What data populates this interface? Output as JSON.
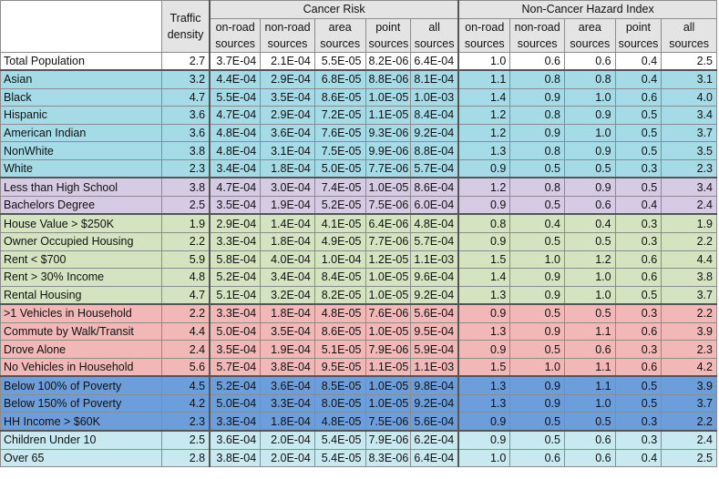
{
  "header": {
    "traffic_density": [
      "Traffic",
      "density"
    ],
    "group_cancer": "Cancer Risk",
    "group_noncancer": "Non-Cancer Hazard Index",
    "sub_cols": [
      [
        "on-road",
        "sources"
      ],
      [
        "non-road",
        "sources"
      ],
      [
        "area",
        "sources"
      ],
      [
        "point",
        "sources"
      ],
      [
        "all",
        "sources"
      ]
    ]
  },
  "rows": [
    {
      "label": "Total Population",
      "group": "total",
      "traffic": "2.7",
      "cancer": [
        "3.7E-04",
        "2.1E-04",
        "5.5E-05",
        "8.2E-06",
        "6.4E-04"
      ],
      "noncancer": [
        "1.0",
        "0.6",
        "0.6",
        "0.4",
        "2.5"
      ]
    },
    {
      "label": "Asian",
      "group": "race",
      "traffic": "3.2",
      "cancer": [
        "4.4E-04",
        "2.9E-04",
        "6.8E-05",
        "8.8E-06",
        "8.1E-04"
      ],
      "noncancer": [
        "1.1",
        "0.8",
        "0.8",
        "0.4",
        "3.1"
      ]
    },
    {
      "label": "Black",
      "group": "race",
      "traffic": "4.7",
      "cancer": [
        "5.5E-04",
        "3.5E-04",
        "8.6E-05",
        "1.0E-05",
        "1.0E-03"
      ],
      "noncancer": [
        "1.4",
        "0.9",
        "1.0",
        "0.6",
        "4.0"
      ]
    },
    {
      "label": "Hispanic",
      "group": "race",
      "traffic": "3.6",
      "cancer": [
        "4.7E-04",
        "2.9E-04",
        "7.2E-05",
        "1.1E-05",
        "8.4E-04"
      ],
      "noncancer": [
        "1.2",
        "0.8",
        "0.9",
        "0.5",
        "3.4"
      ]
    },
    {
      "label": "American Indian",
      "group": "race",
      "traffic": "3.6",
      "cancer": [
        "4.8E-04",
        "3.6E-04",
        "7.6E-05",
        "9.3E-06",
        "9.2E-04"
      ],
      "noncancer": [
        "1.2",
        "0.9",
        "1.0",
        "0.5",
        "3.7"
      ]
    },
    {
      "label": "NonWhite",
      "group": "race",
      "traffic": "3.8",
      "cancer": [
        "4.8E-04",
        "3.1E-04",
        "7.5E-05",
        "9.9E-06",
        "8.8E-04"
      ],
      "noncancer": [
        "1.3",
        "0.8",
        "0.9",
        "0.5",
        "3.5"
      ]
    },
    {
      "label": "White",
      "group": "race",
      "traffic": "2.3",
      "cancer": [
        "3.4E-04",
        "1.8E-04",
        "5.0E-05",
        "7.7E-06",
        "5.7E-04"
      ],
      "noncancer": [
        "0.9",
        "0.5",
        "0.5",
        "0.3",
        "2.3"
      ]
    },
    {
      "label": "Less than High School",
      "group": "edu",
      "traffic": "3.8",
      "cancer": [
        "4.7E-04",
        "3.0E-04",
        "7.4E-05",
        "1.0E-05",
        "8.6E-04"
      ],
      "noncancer": [
        "1.2",
        "0.8",
        "0.9",
        "0.5",
        "3.4"
      ]
    },
    {
      "label": "Bachelors Degree",
      "group": "edu",
      "traffic": "2.5",
      "cancer": [
        "3.5E-04",
        "1.9E-04",
        "5.2E-05",
        "7.5E-06",
        "6.0E-04"
      ],
      "noncancer": [
        "0.9",
        "0.5",
        "0.6",
        "0.4",
        "2.4"
      ]
    },
    {
      "label": "House Value > $250K",
      "group": "housing",
      "traffic": "1.9",
      "cancer": [
        "2.9E-04",
        "1.4E-04",
        "4.1E-05",
        "6.4E-06",
        "4.8E-04"
      ],
      "noncancer": [
        "0.8",
        "0.4",
        "0.4",
        "0.3",
        "1.9"
      ]
    },
    {
      "label": "Owner Occupied Housing",
      "group": "housing",
      "traffic": "2.2",
      "cancer": [
        "3.3E-04",
        "1.8E-04",
        "4.9E-05",
        "7.7E-06",
        "5.7E-04"
      ],
      "noncancer": [
        "0.9",
        "0.5",
        "0.5",
        "0.3",
        "2.2"
      ]
    },
    {
      "label": "Rent < $700",
      "group": "housing",
      "traffic": "5.9",
      "cancer": [
        "5.8E-04",
        "4.0E-04",
        "1.0E-04",
        "1.2E-05",
        "1.1E-03"
      ],
      "noncancer": [
        "1.5",
        "1.0",
        "1.2",
        "0.6",
        "4.4"
      ]
    },
    {
      "label": "Rent > 30% Income",
      "group": "housing",
      "traffic": "4.8",
      "cancer": [
        "5.2E-04",
        "3.4E-04",
        "8.4E-05",
        "1.0E-05",
        "9.6E-04"
      ],
      "noncancer": [
        "1.4",
        "0.9",
        "1.0",
        "0.6",
        "3.8"
      ]
    },
    {
      "label": "Rental Housing",
      "group": "housing",
      "traffic": "4.7",
      "cancer": [
        "5.1E-04",
        "3.2E-04",
        "8.2E-05",
        "1.0E-05",
        "9.2E-04"
      ],
      "noncancer": [
        "1.3",
        "0.9",
        "1.0",
        "0.5",
        "3.7"
      ]
    },
    {
      "label": ">1 Vehicles in Household",
      "group": "vehicle",
      "traffic": "2.2",
      "cancer": [
        "3.3E-04",
        "1.8E-04",
        "4.8E-05",
        "7.6E-06",
        "5.6E-04"
      ],
      "noncancer": [
        "0.9",
        "0.5",
        "0.5",
        "0.3",
        "2.2"
      ]
    },
    {
      "label": "Commute by Walk/Transit",
      "group": "vehicle",
      "traffic": "4.4",
      "cancer": [
        "5.0E-04",
        "3.5E-04",
        "8.6E-05",
        "1.0E-05",
        "9.5E-04"
      ],
      "noncancer": [
        "1.3",
        "0.9",
        "1.1",
        "0.6",
        "3.9"
      ]
    },
    {
      "label": "Drove Alone",
      "group": "vehicle",
      "traffic": "2.4",
      "cancer": [
        "3.5E-04",
        "1.9E-04",
        "5.1E-05",
        "7.9E-06",
        "5.9E-04"
      ],
      "noncancer": [
        "0.9",
        "0.5",
        "0.6",
        "0.3",
        "2.3"
      ]
    },
    {
      "label": "No Vehicles in Household",
      "group": "vehicle",
      "traffic": "5.6",
      "cancer": [
        "5.7E-04",
        "3.8E-04",
        "9.5E-05",
        "1.1E-05",
        "1.1E-03"
      ],
      "noncancer": [
        "1.5",
        "1.0",
        "1.1",
        "0.6",
        "4.2"
      ]
    },
    {
      "label": "Below 100% of Poverty",
      "group": "poverty",
      "traffic": "4.5",
      "cancer": [
        "5.2E-04",
        "3.6E-04",
        "8.5E-05",
        "1.0E-05",
        "9.8E-04"
      ],
      "noncancer": [
        "1.3",
        "0.9",
        "1.1",
        "0.5",
        "3.9"
      ]
    },
    {
      "label": "Below 150% of Poverty",
      "group": "poverty",
      "traffic": "4.2",
      "cancer": [
        "5.0E-04",
        "3.3E-04",
        "8.0E-05",
        "1.0E-05",
        "9.2E-04"
      ],
      "noncancer": [
        "1.3",
        "0.9",
        "1.0",
        "0.5",
        "3.7"
      ]
    },
    {
      "label": "HH Income > $60K",
      "group": "poverty",
      "traffic": "2.3",
      "cancer": [
        "3.3E-04",
        "1.8E-04",
        "4.8E-05",
        "7.5E-06",
        "5.6E-04"
      ],
      "noncancer": [
        "0.9",
        "0.5",
        "0.5",
        "0.3",
        "2.2"
      ]
    },
    {
      "label": "Children Under 10",
      "group": "age",
      "traffic": "2.5",
      "cancer": [
        "3.6E-04",
        "2.0E-04",
        "5.4E-05",
        "7.9E-06",
        "6.2E-04"
      ],
      "noncancer": [
        "0.9",
        "0.5",
        "0.6",
        "0.3",
        "2.4"
      ]
    },
    {
      "label": "Over 65",
      "group": "age",
      "traffic": "2.8",
      "cancer": [
        "3.8E-04",
        "2.0E-04",
        "5.4E-05",
        "8.3E-06",
        "6.4E-04"
      ],
      "noncancer": [
        "1.0",
        "0.6",
        "0.6",
        "0.4",
        "2.5"
      ]
    }
  ],
  "colors": {
    "race": "#a5dbe7",
    "edu": "#d6cbe4",
    "housing": "#d5e4c0",
    "vehicle": "#f2b8b8",
    "poverty": "#6c9edb",
    "age": "#c8e9f0",
    "header_shade": "#e4e4e4"
  }
}
